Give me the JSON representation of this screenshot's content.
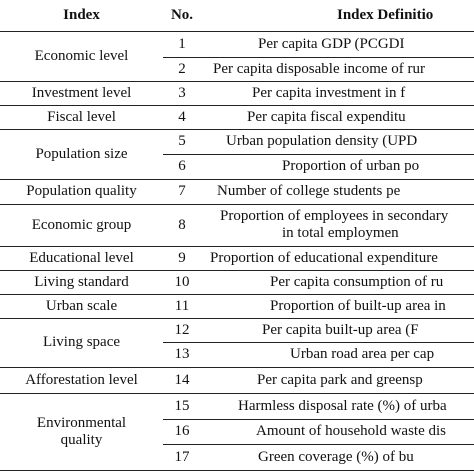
{
  "header": {
    "index": "Index",
    "no": "No.",
    "definition": "Index Definitio"
  },
  "groups": [
    {
      "index": "Economic level",
      "items": [
        {
          "no": 1,
          "definition": "Per capita GDP (PCGDI"
        },
        {
          "no": 2,
          "definition": "Per capita disposable income of rur"
        }
      ]
    },
    {
      "index": "Investment level",
      "items": [
        {
          "no": 3,
          "definition": "Per capita investment in f"
        }
      ]
    },
    {
      "index": "Fiscal level",
      "items": [
        {
          "no": 4,
          "definition": "Per capita fiscal expenditu"
        }
      ]
    },
    {
      "index": "Population size",
      "items": [
        {
          "no": 5,
          "definition": "Urban population density (UPD"
        },
        {
          "no": 6,
          "definition": "Proportion of urban po"
        }
      ]
    },
    {
      "index": "Population quality",
      "items": [
        {
          "no": 7,
          "definition": "Number of college students pe"
        }
      ]
    },
    {
      "index": "Economic group",
      "items": [
        {
          "no": 8,
          "definition": [
            "Proportion of employees in secondary",
            "in total employmen"
          ]
        }
      ]
    },
    {
      "index": "Educational level",
      "items": [
        {
          "no": 9,
          "definition": "Proportion of educational expenditure"
        }
      ]
    },
    {
      "index": "Living standard",
      "items": [
        {
          "no": 10,
          "definition": "Per capita consumption of ru"
        }
      ]
    },
    {
      "index": "Urban scale",
      "items": [
        {
          "no": 11,
          "definition": "Proportion of built-up area in"
        }
      ]
    },
    {
      "index": "Living space",
      "items": [
        {
          "no": 12,
          "definition": "Per capita built-up area (F"
        },
        {
          "no": 13,
          "definition": "Urban road area per cap"
        }
      ]
    },
    {
      "index": "Afforestation level",
      "items": [
        {
          "no": 14,
          "definition": "Per capita park and greensp"
        }
      ]
    },
    {
      "index": "Environmental quality",
      "items": [
        {
          "no": 15,
          "definition": "Harmless disposal rate (%) of urba"
        },
        {
          "no": 16,
          "definition": "Amount of household waste dis"
        },
        {
          "no": 17,
          "definition": "Green coverage (%) of bu"
        }
      ]
    }
  ]
}
